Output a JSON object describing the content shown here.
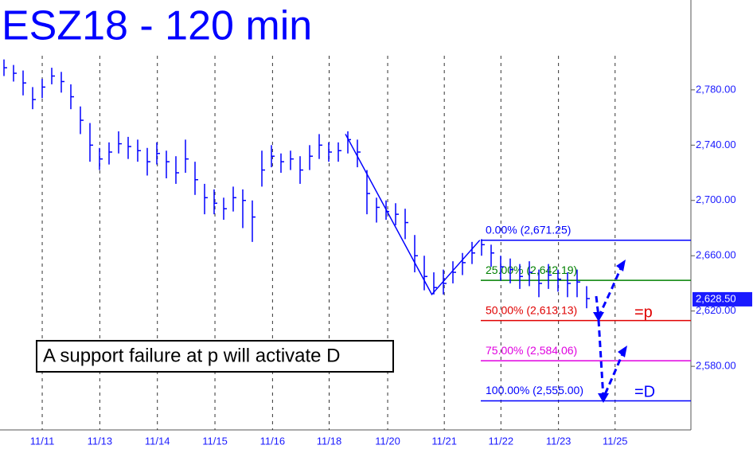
{
  "chart_data": {
    "type": "ohlc",
    "title": "ESZ18 - 120 min",
    "color": "#0000ff",
    "ylim": [
      2534,
      2845
    ],
    "xlim": [
      0,
      72
    ],
    "yticks": [
      {
        "value": 2780,
        "label": "2,780.00"
      },
      {
        "value": 2740,
        "label": "2,740.00"
      },
      {
        "value": 2700,
        "label": "2,700.00"
      },
      {
        "value": 2660,
        "label": "2,660.00"
      },
      {
        "value": 2620,
        "label": "2,620.00"
      },
      {
        "value": 2580,
        "label": "2,580.00"
      }
    ],
    "xticks": [
      {
        "value": 4.4,
        "label": "11/11"
      },
      {
        "value": 10.4,
        "label": "11/13"
      },
      {
        "value": 16.4,
        "label": "11/14"
      },
      {
        "value": 22.4,
        "label": "11/15"
      },
      {
        "value": 28.4,
        "label": "11/16"
      },
      {
        "value": 34.3,
        "label": "11/18"
      },
      {
        "value": 40.4,
        "label": "11/20"
      },
      {
        "value": 46.3,
        "label": "11/21"
      },
      {
        "value": 52.2,
        "label": "11/22"
      },
      {
        "value": 58.2,
        "label": "11/23"
      },
      {
        "value": 64.1,
        "label": "11/25"
      }
    ],
    "close": [
      2796,
      2792,
      2785,
      2773,
      2782,
      2790,
      2786,
      2775,
      2758,
      2740,
      2730,
      2735,
      2741,
      2739,
      2736,
      2728,
      2734,
      2728,
      2720,
      2730,
      2715,
      2702,
      2698,
      2694,
      2702,
      2700,
      2688,
      2722,
      2732,
      2728,
      2730,
      2722,
      2732,
      2740,
      2735,
      2736,
      2744,
      2735,
      2705,
      2695,
      2692,
      2690,
      2684,
      2660,
      2645,
      2637,
      2640,
      2648,
      2655,
      2662,
      2668,
      2662,
      2652,
      2650,
      2645,
      2648,
      2640,
      2646,
      2643,
      2640,
      2641,
      2629
    ],
    "high": [
      2802,
      2798,
      2794,
      2782,
      2788,
      2796,
      2793,
      2784,
      2768,
      2756,
      2738,
      2742,
      2750,
      2746,
      2744,
      2738,
      2742,
      2736,
      2732,
      2744,
      2728,
      2712,
      2708,
      2702,
      2710,
      2708,
      2700,
      2736,
      2740,
      2734,
      2736,
      2732,
      2740,
      2748,
      2742,
      2742,
      2750,
      2744,
      2722,
      2702,
      2700,
      2698,
      2694,
      2675,
      2660,
      2648,
      2650,
      2656,
      2662,
      2670,
      2672,
      2668,
      2660,
      2658,
      2654,
      2656,
      2650,
      2654,
      2650,
      2648,
      2650,
      2638
    ],
    "low": [
      2790,
      2786,
      2776,
      2766,
      2774,
      2784,
      2778,
      2766,
      2748,
      2728,
      2722,
      2726,
      2734,
      2730,
      2728,
      2718,
      2726,
      2716,
      2712,
      2720,
      2704,
      2690,
      2690,
      2686,
      2692,
      2680,
      2670,
      2710,
      2724,
      2720,
      2722,
      2712,
      2722,
      2730,
      2728,
      2728,
      2734,
      2724,
      2690,
      2684,
      2686,
      2682,
      2672,
      2648,
      2635,
      2632,
      2632,
      2640,
      2646,
      2654,
      2660,
      2652,
      2642,
      2640,
      2636,
      2638,
      2630,
      2636,
      2634,
      2630,
      2630,
      2622
    ],
    "pattern": {
      "x": [
        36.0,
        45.0,
        50.0
      ],
      "values": [
        2748,
        2632,
        2671.25
      ]
    },
    "fib_levels": [
      {
        "value": 2671.25,
        "label": "0.00% (2,671.25)",
        "color": "#0000ff"
      },
      {
        "value": 2642.19,
        "label": "25.00% (2,642.19)",
        "color": "#008000"
      },
      {
        "value": 2613.13,
        "label": "50.00% (2,613.13)",
        "color": "#e00000"
      },
      {
        "value": 2584.06,
        "label": "75.00% (2,584.06)",
        "color": "#e000e0"
      },
      {
        "value": 2555.0,
        "label": "100.00% (2,555.00)",
        "color": "#0000ff"
      }
    ],
    "last_price": {
      "value": 2628.5,
      "label": "2,628.50"
    },
    "annotations": {
      "note": "A support failure at p will activate D",
      "p": "=p",
      "d": "=D"
    }
  }
}
